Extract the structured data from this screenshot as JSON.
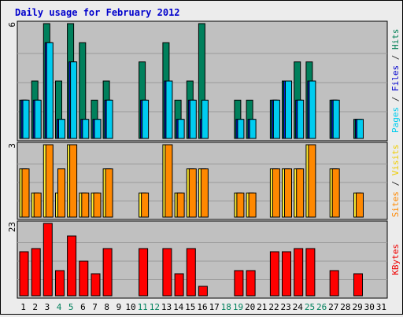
{
  "chart_data": {
    "type": "bar",
    "title": "Daily usage for February 2012",
    "days": [
      "1",
      "2",
      "3",
      "4",
      "5",
      "6",
      "7",
      "8",
      "9",
      "10",
      "11",
      "12",
      "13",
      "14",
      "15",
      "16",
      "17",
      "18",
      "19",
      "20",
      "21",
      "22",
      "23",
      "24",
      "25",
      "26",
      "27",
      "28",
      "29",
      "30",
      "31"
    ],
    "weekend_days": [
      "4",
      "5",
      "11",
      "12",
      "18",
      "19",
      "25",
      "26"
    ],
    "panels": [
      {
        "id": "hits",
        "ymax": 6,
        "ymax_label": "6",
        "axis_label_parts": [
          {
            "text": "Pages",
            "color": "#00ccee"
          },
          {
            "text": " / ",
            "color": "#333333"
          },
          {
            "text": "Files",
            "color": "#0000cc"
          },
          {
            "text": " / ",
            "color": "#333333"
          },
          {
            "text": "Hits",
            "color": "#008055"
          }
        ],
        "series": [
          {
            "name": "Hits",
            "color": "#00805c",
            "values": [
              2,
              3,
              6,
              3,
              6,
              5,
              2,
              3,
              0,
              0,
              4,
              0,
              5,
              2,
              3,
              6,
              0,
              0,
              2,
              2,
              0,
              2,
              3,
              4,
              4,
              0,
              2,
              0,
              1,
              0,
              0
            ]
          },
          {
            "name": "Files",
            "color": "#0020dd",
            "values": [
              2,
              2,
              5,
              1,
              4,
              1,
              1,
              2,
              0,
              0,
              2,
              0,
              3,
              1,
              2,
              1,
              0,
              0,
              1,
              1,
              0,
              2,
              3,
              2,
              3,
              0,
              2,
              0,
              1,
              0,
              0
            ]
          },
          {
            "name": "Pages",
            "color": "#00ccf0",
            "values": [
              2,
              2,
              5,
              1,
              4,
              1,
              1,
              2,
              0,
              0,
              2,
              0,
              3,
              1,
              2,
              2,
              0,
              0,
              1,
              1,
              0,
              2,
              3,
              2,
              3,
              0,
              2,
              0,
              1,
              0,
              0
            ]
          }
        ]
      },
      {
        "id": "visits",
        "ymax": 3,
        "ymax_label": "3",
        "axis_label_parts": [
          {
            "text": "Sites",
            "color": "#ff8800"
          },
          {
            "text": " / ",
            "color": "#333333"
          },
          {
            "text": "Visits",
            "color": "#eecc00"
          }
        ],
        "series": [
          {
            "name": "Visits",
            "color": "#ffee33",
            "values": [
              2,
              1,
              3,
              1,
              3,
              1,
              1,
              2,
              0,
              0,
              1,
              0,
              3,
              1,
              2,
              2,
              0,
              0,
              1,
              1,
              0,
              2,
              2,
              2,
              3,
              0,
              2,
              0,
              1,
              0,
              0
            ]
          },
          {
            "name": "Sites",
            "color": "#ff8800",
            "values": [
              2,
              1,
              3,
              2,
              3,
              1,
              1,
              2,
              0,
              0,
              1,
              0,
              3,
              1,
              2,
              2,
              0,
              0,
              1,
              1,
              0,
              2,
              2,
              2,
              3,
              0,
              2,
              0,
              1,
              0,
              0
            ]
          }
        ]
      },
      {
        "id": "kbytes",
        "ymax": 23,
        "ymax_label": "23",
        "axis_label_parts": [
          {
            "text": "KBytes",
            "color": "#ee0000"
          }
        ],
        "series": [
          {
            "name": "KBytes",
            "color": "#ff0000",
            "values": [
              14,
              15,
              23,
              8,
              19,
              11,
              7,
              15,
              0,
              0,
              15,
              0,
              15,
              7,
              15,
              3,
              0,
              0,
              8,
              8,
              0,
              14,
              14,
              15,
              15,
              0,
              8,
              0,
              7,
              0,
              0
            ]
          }
        ]
      }
    ]
  }
}
